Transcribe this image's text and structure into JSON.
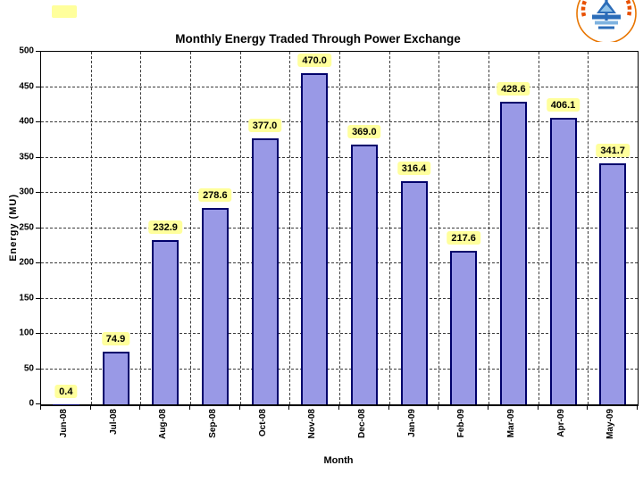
{
  "logo": {
    "arc_text": "पावर सिस्टम ऑपरेशन",
    "ring_color": "#E87500",
    "arc_text_color": "#E85000",
    "emblem_color": "#2B6CB8",
    "emblem_light_color": "#7FB3E0"
  },
  "chart_data": {
    "type": "bar",
    "title": "Monthly Energy Traded Through Power Exchange",
    "xlabel": "Month",
    "ylabel": "Energy (MU)",
    "ylim": [
      0,
      500
    ],
    "ytick_step": 50,
    "grid": "dashed horizontal and vertical gridlines",
    "legend_position": "none",
    "categories": [
      "Jun-08",
      "Jul-08",
      "Aug-08",
      "Sep-08",
      "Oct-08",
      "Nov-08",
      "Dec-08",
      "Jan-09",
      "Feb-09",
      "Mar-09",
      "Apr-09",
      "May-09"
    ],
    "values": [
      0.4,
      74.9,
      232.9,
      278.6,
      377.0,
      470.0,
      369.0,
      316.4,
      217.6,
      428.6,
      406.1,
      341.7
    ],
    "value_labels": [
      "0.4",
      "74.9",
      "232.9",
      "278.6",
      "377.0",
      "470.0",
      "369.0",
      "316.4",
      "217.6",
      "428.6",
      "406.1",
      "341.7"
    ],
    "colors": {
      "bar_fill": "#9999E6",
      "bar_border": "#00006B",
      "value_label_bg": "#FFFF9C",
      "grid_line": "#3a3a3a",
      "axis_line": "#000000",
      "text": "#000000",
      "background": "#FFFFFF"
    }
  }
}
